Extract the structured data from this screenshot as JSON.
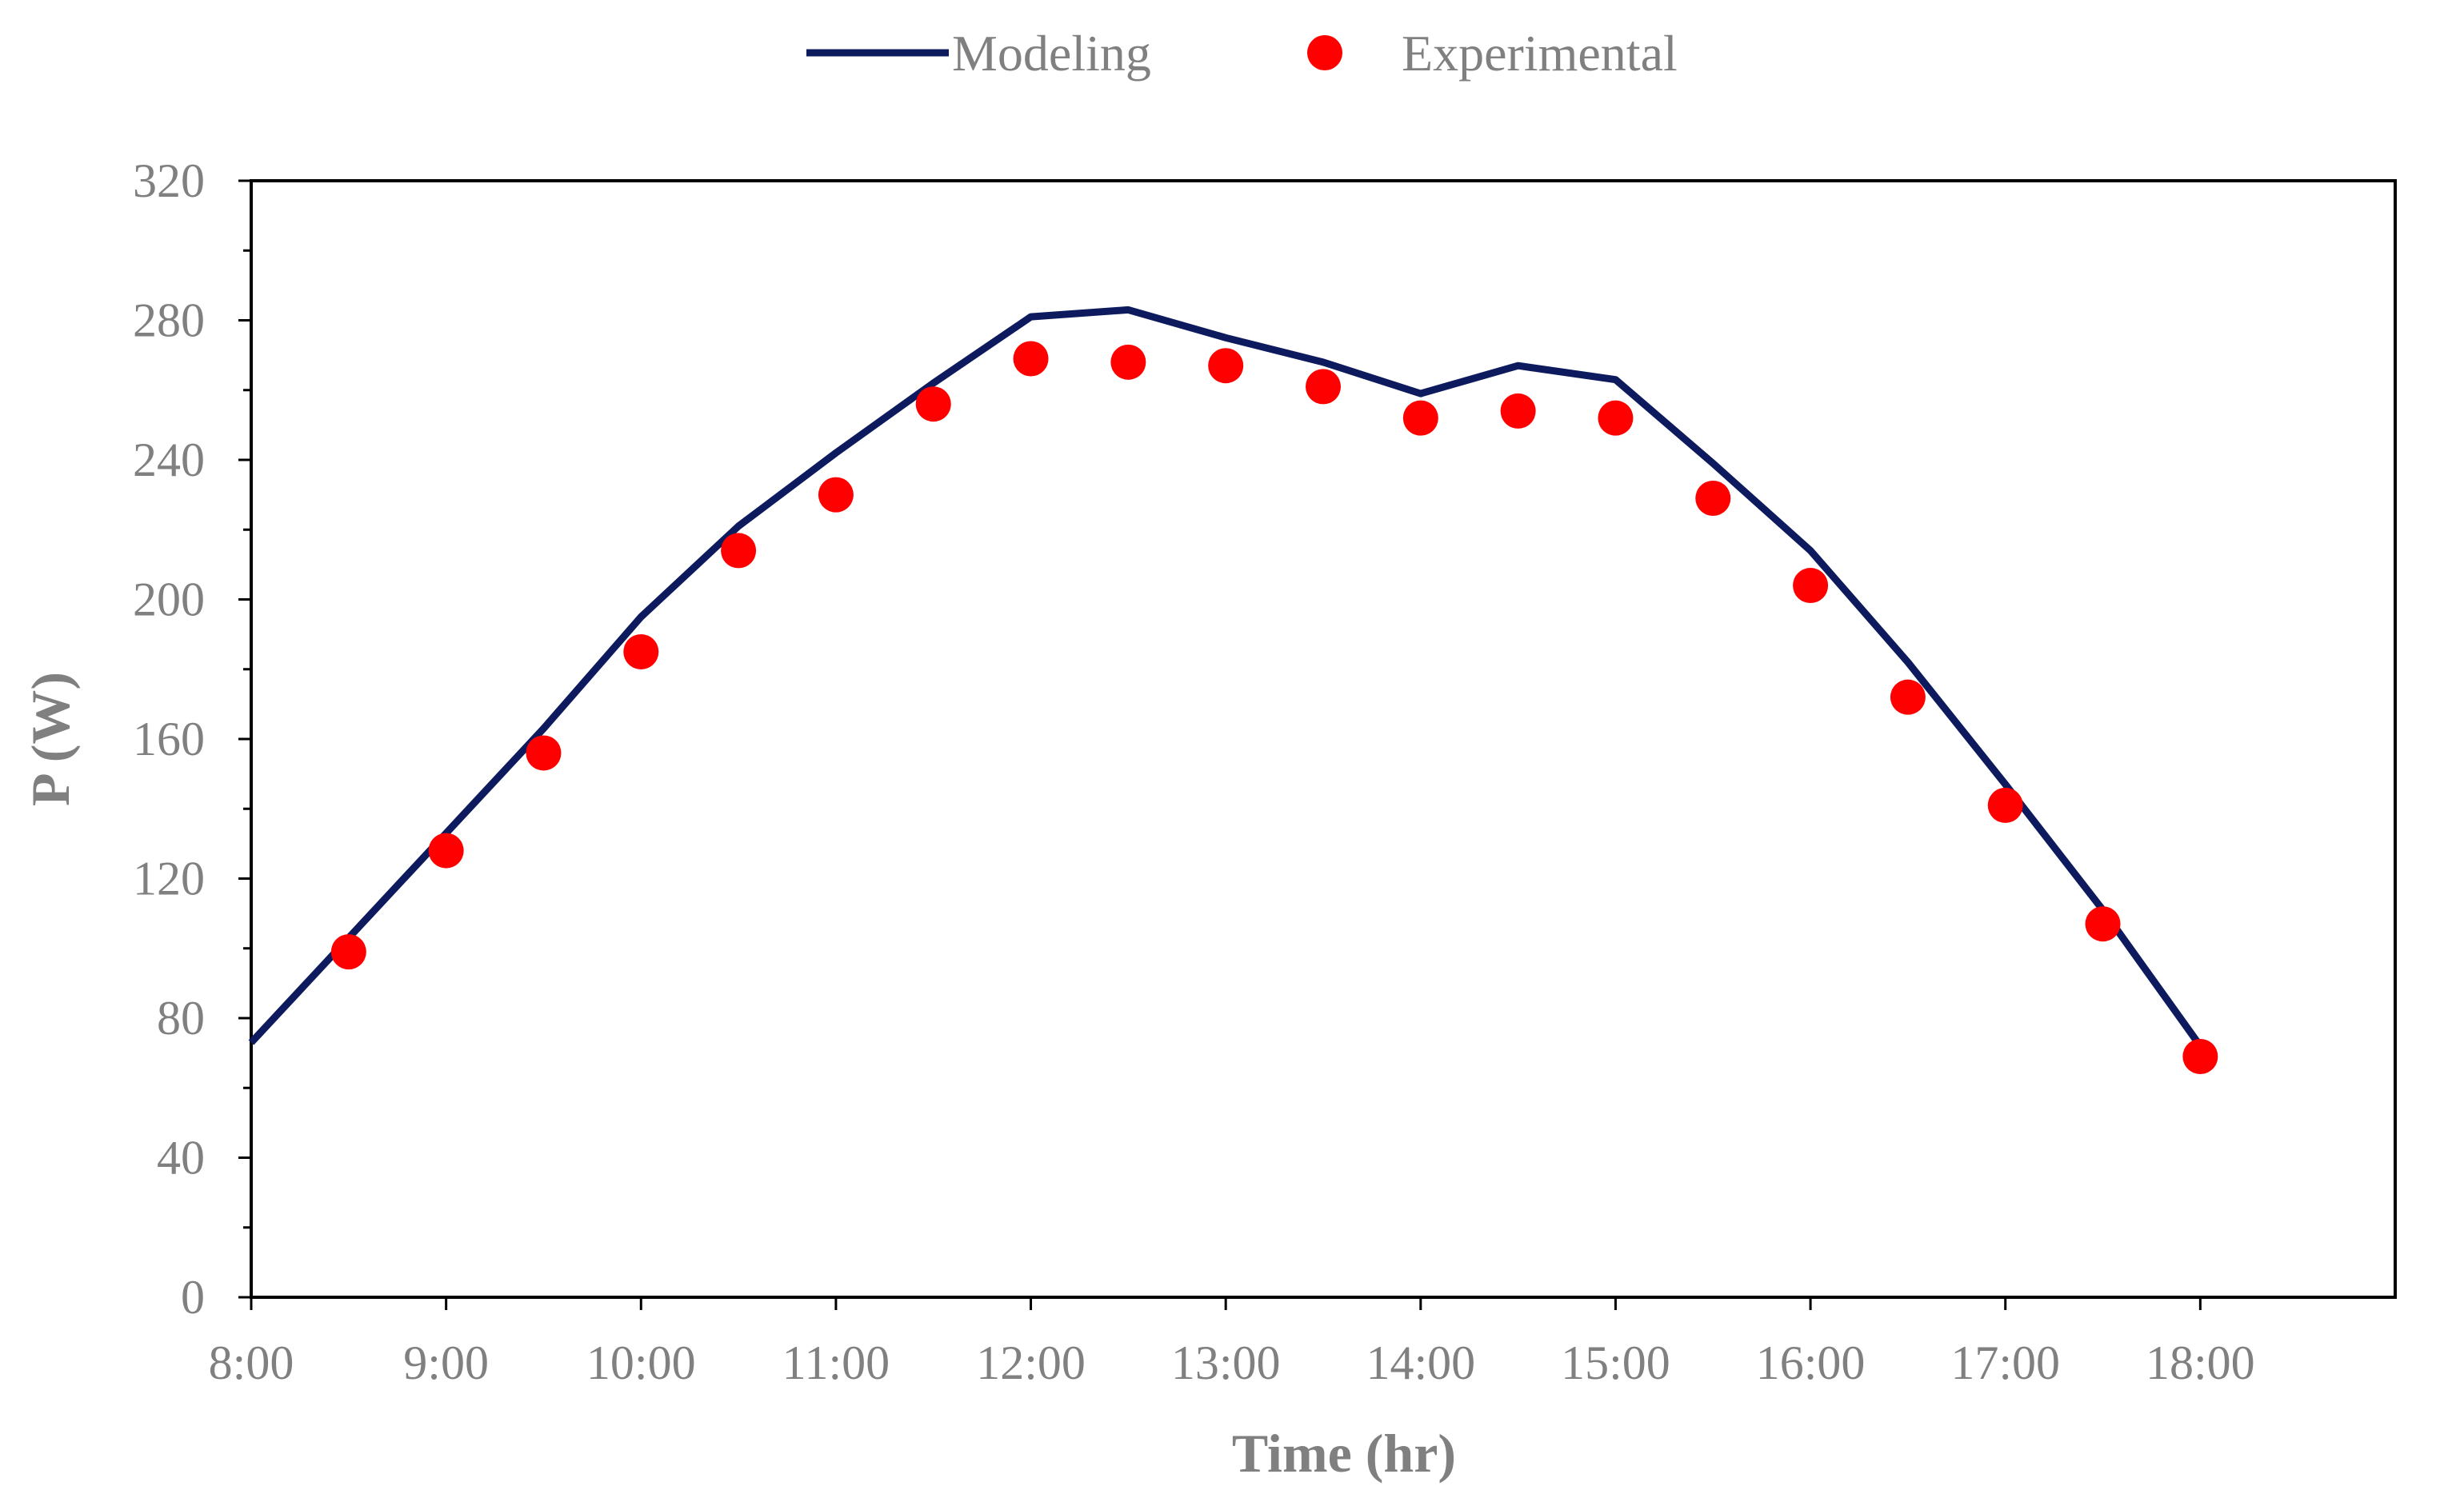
{
  "chart_data": {
    "type": "line",
    "xlabel": "Time (hr)",
    "ylabel": "P (W)",
    "xlim": [
      8,
      19
    ],
    "ylim": [
      0,
      320
    ],
    "x_tick_values": [
      8,
      9,
      10,
      11,
      12,
      13,
      14,
      15,
      16,
      17,
      18
    ],
    "x_tick_labels": [
      "8:00",
      "9:00",
      "10:00",
      "11:00",
      "12:00",
      "13:00",
      "14:00",
      "15:00",
      "16:00",
      "17:00",
      "18:00"
    ],
    "y_ticks": [
      0,
      40,
      80,
      120,
      160,
      200,
      240,
      280,
      320
    ],
    "grid": false,
    "legend_position": "top-center",
    "series": [
      {
        "name": "Modeling",
        "kind": "line",
        "color": "#0d1b5e",
        "x": [
          8,
          8.5,
          9,
          9.5,
          10,
          10.5,
          11,
          11.5,
          12,
          12.5,
          13,
          13.5,
          14,
          14.5,
          15,
          15.5,
          16,
          16.5,
          17,
          17.5,
          18
        ],
        "y": [
          73,
          103,
          133,
          163,
          195,
          221,
          242,
          262,
          281,
          283,
          275,
          268,
          259,
          267,
          263,
          239,
          214,
          182,
          147,
          111,
          72
        ]
      },
      {
        "name": "Experimental",
        "kind": "scatter",
        "color": "#ff0000",
        "x": [
          8.5,
          9,
          9.5,
          10,
          10.5,
          11,
          11.5,
          12,
          12.5,
          13,
          13.5,
          14,
          14.5,
          15,
          15.5,
          16,
          16.5,
          17,
          17.5,
          18
        ],
        "y": [
          99,
          128,
          156,
          185,
          214,
          230,
          256,
          269,
          268,
          267,
          261,
          252,
          254,
          252,
          229,
          204,
          172,
          141,
          107,
          69
        ]
      }
    ]
  }
}
